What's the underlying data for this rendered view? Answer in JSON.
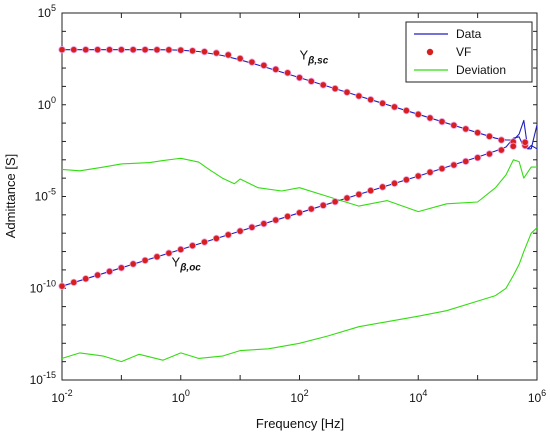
{
  "chart_data": {
    "type": "line",
    "x_scale": "log",
    "y_scale": "log",
    "xlabel": "Frequency [Hz]",
    "ylabel": "Admittance [S]",
    "xlim": [
      0.01,
      1000000
    ],
    "ylim": [
      1e-15,
      100000
    ],
    "x_ticks": [
      {
        "base": "10",
        "exp": "-2",
        "value": 0.01
      },
      {
        "base": "10",
        "exp": "0",
        "value": 1
      },
      {
        "base": "10",
        "exp": "2",
        "value": 100
      },
      {
        "base": "10",
        "exp": "4",
        "value": 10000
      },
      {
        "base": "10",
        "exp": "6",
        "value": 1000000
      }
    ],
    "y_ticks": [
      {
        "base": "10",
        "exp": "-15",
        "value": 1e-15
      },
      {
        "base": "10",
        "exp": "-10",
        "value": 1e-10
      },
      {
        "base": "10",
        "exp": "-5",
        "value": 1e-05
      },
      {
        "base": "10",
        "exp": "0",
        "value": 1
      },
      {
        "base": "10",
        "exp": "5",
        "value": 100000
      }
    ],
    "grid": false,
    "legend_position": "top-right",
    "legend": [
      {
        "label": "Data",
        "style": "line",
        "color": "#1f1fbf"
      },
      {
        "label": "VF",
        "style": "marker",
        "color": "#d62020"
      },
      {
        "label": "Deviation",
        "style": "line",
        "color": "#33dd11"
      }
    ],
    "annotations": [
      {
        "main": "Y",
        "sub": "β,sc",
        "x": 100,
        "y": 300
      },
      {
        "main": "Y",
        "sub": "β,oc",
        "x": 0.7,
        "y": 1.5e-09
      }
    ],
    "series": [
      {
        "name": "Data",
        "color": "#1f1fbf",
        "x": [
          0.01,
          0.1,
          0.3,
          0.6,
          1,
          2,
          5,
          10,
          30,
          100,
          1000,
          10000,
          100000,
          200000,
          300000,
          400000,
          500000,
          600000,
          700000,
          800000,
          1000000
        ],
        "y": [
          1000,
          1000,
          1000,
          990,
          940,
          800,
          480,
          280,
          100,
          30,
          3,
          0.3,
          0.03,
          0.015,
          0.012,
          0.012,
          0.025,
          0.14,
          0.004,
          0.004,
          0.08
        ]
      },
      {
        "name": "Data",
        "color": "#1f1fbf",
        "x": [
          0.01,
          0.1,
          1,
          10,
          100,
          1000,
          10000,
          100000,
          200000,
          300000,
          400000,
          500000,
          600000,
          700000,
          800000,
          1000000
        ],
        "y": [
          1.3e-10,
          1.3e-09,
          1.3e-08,
          1.3e-07,
          1.3e-06,
          1.3e-05,
          0.00013,
          0.0014,
          0.003,
          0.005,
          0.015,
          0.018,
          0.005,
          0.004,
          0.006,
          0.004
        ]
      },
      {
        "name": "Deviation",
        "color": "#33dd11",
        "x": [
          0.01,
          0.02,
          0.05,
          0.1,
          0.3,
          0.5,
          0.8,
          1,
          2,
          3,
          5,
          8,
          10,
          20,
          50,
          100,
          300,
          1000,
          3000,
          10000,
          30000,
          100000,
          200000,
          300000,
          400000,
          500000,
          600000,
          800000,
          1000000
        ],
        "y": [
          0.0003,
          0.00025,
          0.0004,
          0.0006,
          0.0007,
          0.0009,
          0.0011,
          0.0012,
          0.00075,
          0.0003,
          0.0001,
          5e-05,
          9e-05,
          3e-05,
          2e-05,
          3e-05,
          1e-05,
          3e-06,
          6e-06,
          1.5e-06,
          4e-06,
          5e-06,
          3e-05,
          0.00015,
          0.001,
          0.0008,
          0.0001,
          0.0004,
          0.0004
        ]
      },
      {
        "name": "Deviation",
        "color": "#33dd11",
        "x": [
          0.01,
          0.02,
          0.05,
          0.1,
          0.2,
          0.5,
          1,
          2,
          5,
          10,
          30,
          100,
          300,
          1000,
          3000,
          10000,
          30000,
          100000,
          200000,
          300000,
          400000,
          500000,
          600000,
          800000,
          1000000
        ],
        "y": [
          1.5e-14,
          3e-14,
          2e-14,
          1e-14,
          2.5e-14,
          1.2e-14,
          3e-14,
          1.5e-14,
          2e-14,
          4e-14,
          5e-14,
          1e-13,
          2.5e-13,
          8e-13,
          1.5e-12,
          3e-12,
          6e-12,
          2e-11,
          4e-11,
          1e-10,
          5e-10,
          2e-09,
          1e-08,
          1e-07,
          2e-07
        ]
      },
      {
        "name": "VF",
        "color": "#d62020",
        "style": "markers",
        "x": [
          0.01,
          0.0158,
          0.0251,
          0.0398,
          0.0631,
          0.1,
          0.158,
          0.251,
          0.398,
          0.631,
          1,
          1.58,
          2.51,
          3.98,
          6.31,
          10,
          15.8,
          25.1,
          39.8,
          63.1,
          100,
          158,
          251,
          398,
          631,
          1000,
          1580,
          2510,
          3980,
          6310,
          10000,
          15800,
          25100,
          39800,
          63100,
          100000,
          158000,
          251000,
          398000,
          631000
        ],
        "y": [
          1000,
          1000,
          1000,
          1000,
          1000,
          1000,
          1000,
          1000,
          995,
          980,
          940,
          870,
          780,
          660,
          520,
          330,
          210,
          140,
          85,
          55,
          30,
          19,
          12,
          7.6,
          4.8,
          3,
          1.9,
          1.2,
          0.76,
          0.48,
          0.3,
          0.19,
          0.12,
          0.076,
          0.048,
          0.03,
          0.019,
          0.012,
          0.0095,
          0.006
        ]
      },
      {
        "name": "VF",
        "color": "#d62020",
        "style": "markers",
        "x": [
          0.01,
          0.0158,
          0.0251,
          0.0398,
          0.0631,
          0.1,
          0.158,
          0.251,
          0.398,
          0.631,
          1,
          1.58,
          2.51,
          3.98,
          6.31,
          10,
          15.8,
          25.1,
          39.8,
          63.1,
          100,
          158,
          251,
          398,
          631,
          1000,
          1580,
          2510,
          3980,
          6310,
          10000,
          15800,
          25100,
          39800,
          63100,
          100000,
          158000,
          251000,
          398000,
          631000
        ],
        "y": [
          1.3e-10,
          2.1e-10,
          3.3e-10,
          5.2e-10,
          8.2e-10,
          1.3e-09,
          2.1e-09,
          3.3e-09,
          5.2e-09,
          8.2e-09,
          1.3e-08,
          2.1e-08,
          3.3e-08,
          5.2e-08,
          8.2e-08,
          1.3e-07,
          2.1e-07,
          3.3e-07,
          5.2e-07,
          8.2e-07,
          1.3e-06,
          2.1e-06,
          3.3e-06,
          5.2e-06,
          8.2e-06,
          1.3e-05,
          2.1e-05,
          3.3e-05,
          5.2e-05,
          8.2e-05,
          0.00013,
          0.00021,
          0.00033,
          0.00052,
          0.00082,
          0.0013,
          0.0021,
          0.0034,
          0.0055,
          0.009
        ]
      }
    ]
  }
}
